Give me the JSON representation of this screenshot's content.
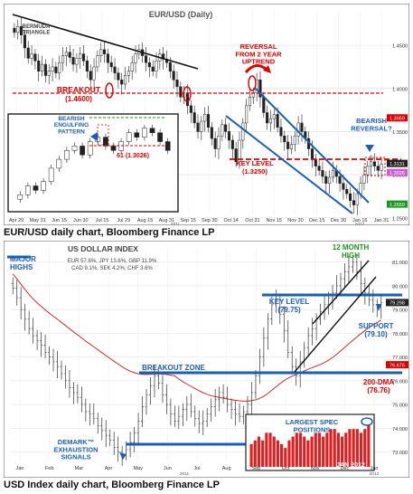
{
  "charts": [
    {
      "type": "candlestick",
      "title": "EUR/USD (Daily)",
      "caption": "EUR/USD daily chart, Bloomberg Finance LP",
      "x_ticks": [
        "Apr 29",
        "May 31",
        "Jun 15",
        "Jun 30",
        "Jul 15",
        "Jul 29",
        "Aug 15",
        "Aug 31",
        "Sep 15",
        "Sep 30",
        "Oct 14",
        "Oct 31",
        "Nov 15",
        "Nov 30",
        "Dec 15",
        "Dec 30",
        "Jan 16",
        "Jan 31"
      ],
      "x_year_labels": [
        "2011",
        "2012"
      ],
      "y_ticks": [
        "1.4500",
        "1.4000",
        "1.3500",
        "1.3000",
        "1.2500"
      ],
      "price_flags": [
        "1.3659",
        "1.3131",
        "1.3026",
        "1.2659"
      ],
      "annotations": {
        "bermuda": "BERMUDA\nTRIANGLE",
        "breakout": "BREAKOUT",
        "breakout_level": "(1.4600)",
        "reversal": "REVERSAL\nFROM 2 YEAR\nUPTREND",
        "key_level": "KEY LEVEL",
        "key_level_value": "(1.3250)",
        "bearish_reversal": "BEARISH\nREVERSAL?",
        "inset_pattern": "BEARISH\nENGULFING\nPATTERN",
        "inset_level": "61 (1.3026)"
      },
      "series_close": [
        1.465,
        1.472,
        1.462,
        1.447,
        1.435,
        1.44,
        1.432,
        1.42,
        1.428,
        1.415,
        1.42,
        1.425,
        1.418,
        1.43,
        1.438,
        1.442,
        1.436,
        1.428,
        1.435,
        1.44,
        1.432,
        1.42,
        1.41,
        1.425,
        1.438,
        1.445,
        1.44,
        1.43,
        1.425,
        1.418,
        1.41,
        1.405,
        1.415,
        1.42,
        1.43,
        1.44,
        1.445,
        1.438,
        1.43,
        1.425,
        1.42,
        1.432,
        1.44,
        1.434,
        1.43,
        1.42,
        1.41,
        1.402,
        1.39,
        1.395,
        1.38,
        1.372,
        1.36,
        1.35,
        1.362,
        1.37,
        1.355,
        1.342,
        1.33,
        1.345,
        1.358,
        1.35,
        1.34,
        1.33,
        1.315,
        1.34,
        1.36,
        1.38,
        1.39,
        1.395,
        1.41,
        1.39,
        1.372,
        1.36,
        1.365,
        1.37,
        1.355,
        1.345,
        1.338,
        1.33,
        1.335,
        1.345,
        1.36,
        1.35,
        1.342,
        1.33,
        1.318,
        1.31,
        1.305,
        1.298,
        1.29,
        1.297,
        1.305,
        1.298,
        1.29,
        1.283,
        1.278,
        1.27,
        1.265,
        1.278,
        1.29,
        1.3,
        1.31,
        1.315,
        1.31,
        1.305,
        1.312
      ]
    },
    {
      "type": "bar-ohlc",
      "title": "US DOLLAR INDEX",
      "caption": "USD Index daily chart, Bloomberg Finance LP",
      "weights": [
        "EUR 57.6%, JPY 13.6%, GBP 11.9%",
        "CAD 9.1%, SEK 4.2%, CHF 3.6%"
      ],
      "x_ticks": [
        "Jan",
        "Feb",
        "Mar",
        "Apr",
        "May",
        "Jun",
        "Jul",
        "Aug",
        "Sep",
        "Oct",
        "Nov",
        "Dec",
        "Jan"
      ],
      "x_year_labels": [
        "2011",
        "2012"
      ],
      "y_ticks": [
        "81.000",
        "80.000",
        "79.000",
        "78.000",
        "77.000",
        "76.000",
        "75.000",
        "74.000",
        "73.000"
      ],
      "price_flags": [
        "79.298",
        "76.676"
      ],
      "annotations": {
        "major_highs": "MAJOR\nHIGHS",
        "twelve_month_high": "12 MONTH\nHIGH",
        "key_level": "KEY LEVEL",
        "key_level_value": "(79.75)",
        "support": "SUPPORT",
        "support_value": "(79.10)",
        "breakout_zone": "BREAKOUT ZONE",
        "dma": "200-DMA",
        "dma_value": "(76.76)",
        "demark": "DEMARK™\nEXHAUSTION\nSIGNALS"
      },
      "series_close": [
        79.9,
        79.5,
        79.0,
        78.6,
        78.2,
        77.9,
        77.7,
        77.5,
        77.2,
        77.0,
        76.8,
        76.6,
        76.3,
        76.0,
        75.7,
        75.5,
        75.3,
        75.0,
        74.7,
        74.6,
        74.4,
        74.1,
        73.9,
        73.7,
        73.5,
        73.2,
        73.0,
        72.9,
        73.1,
        73.4,
        73.8,
        74.3,
        74.9,
        75.4,
        75.8,
        76.2,
        75.9,
        75.4,
        75.0,
        74.6,
        74.3,
        74.5,
        74.8,
        75.0,
        74.7,
        74.4,
        74.2,
        74.3,
        74.6,
        74.9,
        75.2,
        75.5,
        75.3,
        75.0,
        74.8,
        74.6,
        74.5,
        74.7,
        75.0,
        75.5,
        76.2,
        77.0,
        77.8,
        78.6,
        79.2,
        79.4,
        78.8,
        78.1,
        77.2,
        76.6,
        76.2,
        76.8,
        77.4,
        77.9,
        78.2,
        78.6,
        78.9,
        79.2,
        79.5,
        79.7,
        80.0,
        80.3,
        80.6,
        80.8,
        81.0,
        80.6,
        80.1,
        79.7,
        79.4,
        79.2,
        79.1,
        79.3
      ]
    }
  ],
  "inset": {
    "title": "LARGEST SPEC\nPOSITIONS",
    "date_label": "JAN 2012",
    "values": [
      6,
      7,
      8,
      7,
      9,
      9,
      8,
      7,
      6,
      5,
      7,
      8,
      9,
      9,
      8,
      7,
      8,
      9,
      9,
      8,
      9,
      10,
      10,
      9,
      8,
      9,
      10,
      10,
      10,
      9,
      10,
      11
    ]
  }
}
